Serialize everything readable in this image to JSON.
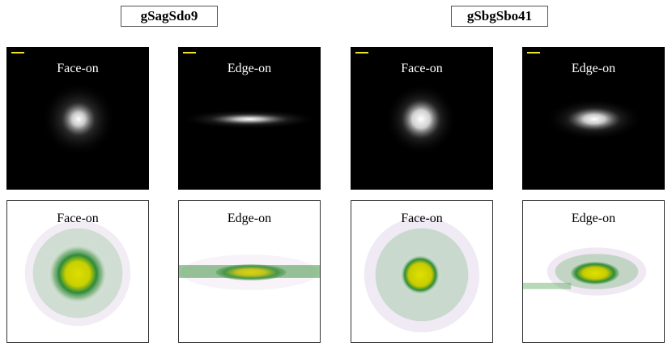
{
  "groups": [
    {
      "label": "gSagSdo9"
    },
    {
      "label": "gSbgSbo41"
    }
  ],
  "panels": [
    {
      "title": "Face-on",
      "view": "face",
      "row": "top",
      "galaxy": "gSagSdo9"
    },
    {
      "title": "Edge-on",
      "view": "edge",
      "row": "top",
      "galaxy": "gSagSdo9"
    },
    {
      "title": "Face-on",
      "view": "face",
      "row": "top",
      "galaxy": "gSbgSbo41"
    },
    {
      "title": "Edge-on",
      "view": "edge",
      "row": "top",
      "galaxy": "gSbgSbo41"
    },
    {
      "title": "Face-on",
      "view": "face",
      "row": "bottom",
      "galaxy": "gSagSdo9"
    },
    {
      "title": "Edge-on",
      "view": "edge",
      "row": "bottom",
      "galaxy": "gSagSdo9"
    },
    {
      "title": "Face-on",
      "view": "face",
      "row": "bottom",
      "galaxy": "gSbgSbo41"
    },
    {
      "title": "Edge-on",
      "view": "edge",
      "row": "bottom",
      "galaxy": "gSbgSbo41"
    }
  ],
  "colors": {
    "background_dark": "#000000",
    "core_yellow": "#d8d800",
    "arm_green": "#3a9a3a",
    "halo_purple": "#9a6ab0",
    "scalebar": "#f0e02a"
  }
}
